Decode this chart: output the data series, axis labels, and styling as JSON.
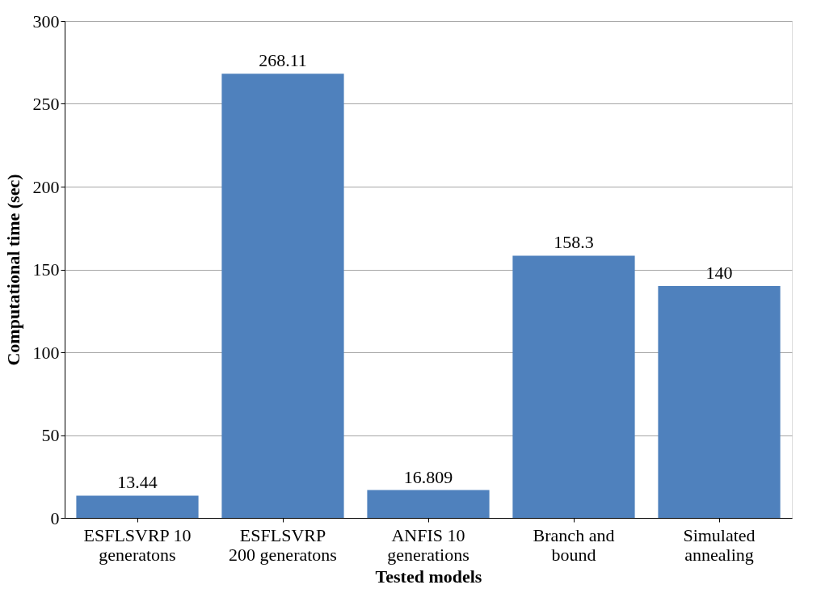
{
  "chart_data": {
    "type": "bar",
    "categories": [
      "ESFLSVRP 10\ngeneratons",
      "ESFLSVRP\n200 generatons",
      "ANFIS 10\ngenerations",
      "Branch and\nbound",
      "Simulated\nannealing"
    ],
    "values": [
      13.44,
      268.11,
      16.809,
      158.3,
      140
    ],
    "color": "#4f81bd",
    "xlabel": "Tested models",
    "ylabel": "Computational time (sec)",
    "ylim": [
      0,
      300
    ],
    "yticks": [
      0,
      50,
      100,
      150,
      200,
      250,
      300
    ],
    "grid": "y",
    "data_labels": true
  }
}
